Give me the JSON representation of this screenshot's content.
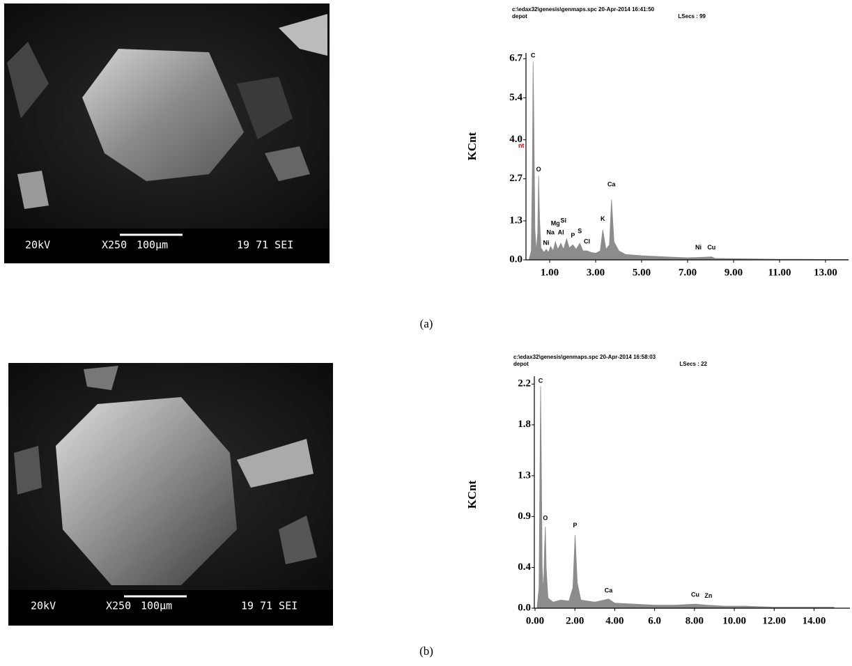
{
  "images": [
    {
      "labels": [
        "20kV",
        "X250",
        "100µm",
        "19 71 SEI"
      ]
    },
    {
      "labels": [
        "20kV",
        "X250",
        "100µm",
        "19 71 SEI"
      ]
    }
  ],
  "captions": [
    "(a)",
    "(b)"
  ],
  "chart_data": [
    {
      "type": "area",
      "title": "c:\\edax32\\genesis\\genmaps.spc  20-Apr-2014 16:41:50",
      "subtitle": "depot",
      "live_time": "LSecs : 99",
      "y_label": "KCnt",
      "axis_fragment": "nt",
      "color": "#8c8c8c",
      "x": [
        0.1,
        0.2,
        0.25,
        0.28,
        0.31,
        0.36,
        0.42,
        0.48,
        0.52,
        0.56,
        0.62,
        0.75,
        0.85,
        0.95,
        1.04,
        1.15,
        1.25,
        1.35,
        1.49,
        1.6,
        1.74,
        1.85,
        2.01,
        2.15,
        2.31,
        2.45,
        2.62,
        2.8,
        3.0,
        3.2,
        3.31,
        3.45,
        3.6,
        3.69,
        3.8,
        4.01,
        4.3,
        5.0,
        6.0,
        7.0,
        7.47,
        8.04,
        8.2,
        9.0,
        10.0,
        11.0,
        12.0,
        13.0,
        14.0
      ],
      "values": [
        0,
        0.3,
        3.2,
        6.6,
        4.8,
        1.0,
        0.3,
        0.9,
        2.8,
        1.4,
        0.4,
        0.25,
        0.35,
        0.25,
        0.45,
        0.3,
        0.6,
        0.35,
        0.55,
        0.35,
        0.7,
        0.4,
        0.5,
        0.35,
        0.55,
        0.3,
        0.3,
        0.25,
        0.22,
        0.3,
        1.0,
        0.35,
        0.5,
        2.0,
        0.6,
        0.3,
        0.18,
        0.14,
        0.1,
        0.07,
        0.08,
        0.1,
        0.05,
        0.04,
        0.03,
        0.02,
        0.02,
        0.01,
        0.01
      ],
      "xlim": [
        0,
        14
      ],
      "xticks": [
        {
          "value": 1,
          "label": "1.00"
        },
        {
          "value": 3,
          "label": "3.00"
        },
        {
          "value": 5,
          "label": "5.00"
        },
        {
          "value": 7,
          "label": "7.00"
        },
        {
          "value": 9,
          "label": "9.00"
        },
        {
          "value": 11,
          "label": "11.00"
        },
        {
          "value": 13,
          "label": "13.00"
        }
      ],
      "ylim": [
        0,
        6.8
      ],
      "yticks": [
        {
          "value": 0,
          "label": "0.0"
        },
        1.3,
        2.7,
        {
          "value": 4,
          "label": "4.0"
        },
        5.4,
        6.7
      ],
      "annotations": [
        {
          "text": "C",
          "x": 0.28,
          "y": 6.7
        },
        {
          "text": "O",
          "x": 0.52,
          "y": 2.9
        },
        {
          "text": "Ni",
          "x": 0.85,
          "y": 0.45
        },
        {
          "text": "Na",
          "x": 1.04,
          "y": 0.8
        },
        {
          "text": "Mg",
          "x": 1.25,
          "y": 1.1
        },
        {
          "text": "Si",
          "x": 1.6,
          "y": 1.2
        },
        {
          "text": "Al",
          "x": 1.49,
          "y": 0.8
        },
        {
          "text": "P",
          "x": 2.01,
          "y": 0.7
        },
        {
          "text": "S",
          "x": 2.31,
          "y": 0.85
        },
        {
          "text": "Cl",
          "x": 2.62,
          "y": 0.5
        },
        {
          "text": "K",
          "x": 3.31,
          "y": 1.25
        },
        {
          "text": "Ca",
          "x": 3.69,
          "y": 2.4
        },
        {
          "text": "Ni",
          "x": 7.47,
          "y": 0.3
        },
        {
          "text": "Cu",
          "x": 8.04,
          "y": 0.3
        }
      ]
    },
    {
      "type": "area",
      "title": "c:\\edax32\\genesis\\genmaps.spc  20-Apr-2014 16:58:03",
      "subtitle": "depot",
      "live_time": "LSecs : 22",
      "y_label": "KCnt",
      "color": "#8c8c8c",
      "x": [
        0.1,
        0.2,
        0.24,
        0.28,
        0.31,
        0.36,
        0.42,
        0.48,
        0.52,
        0.56,
        0.65,
        0.9,
        1.3,
        1.7,
        1.9,
        2.01,
        2.12,
        2.3,
        3.0,
        3.69,
        4.0,
        5.0,
        6.0,
        7.0,
        8.04,
        8.63,
        9.5,
        10.5,
        12.0,
        13.5,
        15.0
      ],
      "values": [
        0,
        0.2,
        1.2,
        2.18,
        1.6,
        0.4,
        0.15,
        0.6,
        0.8,
        0.4,
        0.1,
        0.06,
        0.08,
        0.07,
        0.2,
        0.72,
        0.25,
        0.08,
        0.06,
        0.09,
        0.05,
        0.04,
        0.03,
        0.03,
        0.04,
        0.03,
        0.02,
        0.02,
        0.01,
        0.01,
        0.01
      ],
      "xlim": [
        0,
        15.8
      ],
      "xticks": [
        {
          "value": 0,
          "label": "0.00"
        },
        {
          "value": 2,
          "label": "2.00"
        },
        {
          "value": 4,
          "label": "4.00"
        },
        {
          "value": 6,
          "label": "6.0"
        },
        {
          "value": 8,
          "label": "8.00"
        },
        {
          "value": 10,
          "label": "10.00"
        },
        {
          "value": 12,
          "label": "12.00"
        },
        {
          "value": 14,
          "label": "14.00"
        }
      ],
      "ylim": [
        0,
        2.25
      ],
      "yticks": [
        {
          "value": 0,
          "label": "0.0"
        },
        0.4,
        0.9,
        1.3,
        1.8,
        2.2
      ],
      "annotations": [
        {
          "text": "C",
          "x": 0.28,
          "y": 2.2
        },
        {
          "text": "O",
          "x": 0.52,
          "y": 0.85
        },
        {
          "text": "P",
          "x": 2.01,
          "y": 0.78
        },
        {
          "text": "Ca",
          "x": 3.69,
          "y": 0.14
        },
        {
          "text": "Cu",
          "x": 8.04,
          "y": 0.1
        },
        {
          "text": "Zn",
          "x": 8.7,
          "y": 0.09
        }
      ]
    }
  ]
}
